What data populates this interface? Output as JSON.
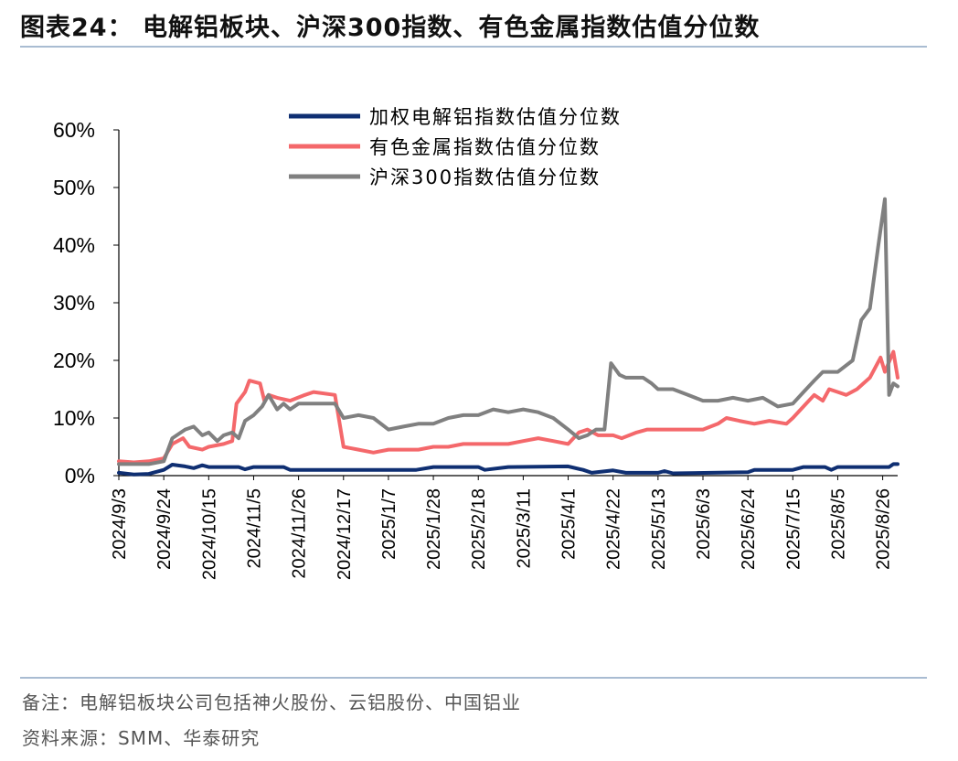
{
  "header": {
    "title": "图表24：  电解铝板块、沪深300指数、有色金属指数估值分位数"
  },
  "footer": {
    "note": "备注：电解铝板块公司包括神火股份、云铝股份、中国铝业",
    "source": "资料来源：SMM、华泰研究"
  },
  "chart_data": {
    "type": "line",
    "y_axis": {
      "min": 0,
      "max": 60,
      "step": 10,
      "format": "percent",
      "tick_labels": [
        "0%",
        "10%",
        "20%",
        "30%",
        "40%",
        "50%",
        "60%"
      ]
    },
    "x_axis": {
      "tick_labels": [
        "2024/9/3",
        "2024/9/24",
        "2024/10/15",
        "2024/11/5",
        "2024/11/26",
        "2024/12/17",
        "2025/1/7",
        "2025/1/28",
        "2025/2/18",
        "2025/3/11",
        "2025/4/1",
        "2025/4/22",
        "2025/5/13",
        "2025/6/3",
        "2025/6/24",
        "2025/7/15",
        "2025/8/5",
        "2025/8/26"
      ],
      "tick_dates": [
        "2024-09-03",
        "2024-09-24",
        "2024-10-15",
        "2024-11-05",
        "2024-11-26",
        "2024-12-17",
        "2025-01-07",
        "2025-01-28",
        "2025-02-18",
        "2025-03-11",
        "2025-04-01",
        "2025-04-22",
        "2025-05-13",
        "2025-06-03",
        "2025-06-24",
        "2025-07-15",
        "2025-08-05",
        "2025-08-26"
      ],
      "range": [
        "2024-09-03",
        "2025-09-02"
      ]
    },
    "grid": false,
    "legend": "top-center",
    "series": [
      {
        "name": "加权电解铝指数估值分位数",
        "color": "#0f2f72",
        "points": [
          [
            "2024-09-03",
            0.5
          ],
          [
            "2024-09-10",
            0.2
          ],
          [
            "2024-09-17",
            0.3
          ],
          [
            "2024-09-24",
            1.0
          ],
          [
            "2024-09-28",
            1.9
          ],
          [
            "2024-10-04",
            1.6
          ],
          [
            "2024-10-08",
            1.3
          ],
          [
            "2024-10-12",
            1.8
          ],
          [
            "2024-10-15",
            1.5
          ],
          [
            "2024-10-29",
            1.5
          ],
          [
            "2024-11-01",
            1.1
          ],
          [
            "2024-11-05",
            1.5
          ],
          [
            "2024-11-19",
            1.5
          ],
          [
            "2024-11-22",
            1.0
          ],
          [
            "2024-12-17",
            1.0
          ],
          [
            "2025-01-20",
            1.0
          ],
          [
            "2025-01-28",
            1.5
          ],
          [
            "2025-02-18",
            1.5
          ],
          [
            "2025-02-21",
            1.0
          ],
          [
            "2025-03-04",
            1.5
          ],
          [
            "2025-04-01",
            1.6
          ],
          [
            "2025-04-08",
            1.0
          ],
          [
            "2025-04-12",
            0.5
          ],
          [
            "2025-04-22",
            0.9
          ],
          [
            "2025-04-28",
            0.5
          ],
          [
            "2025-05-13",
            0.5
          ],
          [
            "2025-05-16",
            0.8
          ],
          [
            "2025-05-20",
            0.4
          ],
          [
            "2025-06-24",
            0.6
          ],
          [
            "2025-06-27",
            1.0
          ],
          [
            "2025-07-15",
            1.0
          ],
          [
            "2025-07-20",
            1.5
          ],
          [
            "2025-07-30",
            1.5
          ],
          [
            "2025-08-02",
            1.0
          ],
          [
            "2025-08-05",
            1.5
          ],
          [
            "2025-08-29",
            1.5
          ],
          [
            "2025-08-31",
            2.0
          ],
          [
            "2025-09-02",
            2.0
          ]
        ]
      },
      {
        "name": "有色金属指数估值分位数",
        "color": "#f4686b",
        "points": [
          [
            "2024-09-03",
            2.5
          ],
          [
            "2024-09-10",
            2.3
          ],
          [
            "2024-09-17",
            2.5
          ],
          [
            "2024-09-24",
            3.0
          ],
          [
            "2024-09-28",
            5.5
          ],
          [
            "2024-10-03",
            6.5
          ],
          [
            "2024-10-06",
            5.0
          ],
          [
            "2024-10-12",
            4.5
          ],
          [
            "2024-10-15",
            5.0
          ],
          [
            "2024-10-22",
            5.5
          ],
          [
            "2024-10-26",
            6.0
          ],
          [
            "2024-10-28",
            12.5
          ],
          [
            "2024-11-01",
            14.5
          ],
          [
            "2024-11-03",
            16.5
          ],
          [
            "2024-11-08",
            16.0
          ],
          [
            "2024-11-10",
            13.0
          ],
          [
            "2024-11-12",
            14.0
          ],
          [
            "2024-11-16",
            13.5
          ],
          [
            "2024-11-22",
            13.0
          ],
          [
            "2024-11-29",
            14.0
          ],
          [
            "2024-12-03",
            14.5
          ],
          [
            "2024-12-13",
            14.0
          ],
          [
            "2024-12-17",
            5.0
          ],
          [
            "2024-12-24",
            4.5
          ],
          [
            "2024-12-31",
            4.0
          ],
          [
            "2025-01-07",
            4.5
          ],
          [
            "2025-01-14",
            4.5
          ],
          [
            "2025-01-21",
            4.5
          ],
          [
            "2025-01-28",
            5.0
          ],
          [
            "2025-02-04",
            5.0
          ],
          [
            "2025-02-11",
            5.5
          ],
          [
            "2025-02-18",
            5.5
          ],
          [
            "2025-02-25",
            5.5
          ],
          [
            "2025-03-04",
            5.5
          ],
          [
            "2025-03-11",
            6.0
          ],
          [
            "2025-03-18",
            6.5
          ],
          [
            "2025-03-25",
            6.0
          ],
          [
            "2025-04-01",
            5.5
          ],
          [
            "2025-04-06",
            7.5
          ],
          [
            "2025-04-10",
            8.0
          ],
          [
            "2025-04-15",
            7.0
          ],
          [
            "2025-04-22",
            7.0
          ],
          [
            "2025-04-26",
            6.5
          ],
          [
            "2025-05-03",
            7.5
          ],
          [
            "2025-05-08",
            8.0
          ],
          [
            "2025-05-20",
            8.0
          ],
          [
            "2025-06-03",
            8.0
          ],
          [
            "2025-06-10",
            9.0
          ],
          [
            "2025-06-14",
            10.0
          ],
          [
            "2025-06-20",
            9.5
          ],
          [
            "2025-06-27",
            9.0
          ],
          [
            "2025-07-04",
            9.5
          ],
          [
            "2025-07-12",
            9.0
          ],
          [
            "2025-07-15",
            10.0
          ],
          [
            "2025-07-20",
            12.0
          ],
          [
            "2025-07-25",
            14.0
          ],
          [
            "2025-07-29",
            13.0
          ],
          [
            "2025-08-01",
            15.0
          ],
          [
            "2025-08-05",
            14.5
          ],
          [
            "2025-08-09",
            14.0
          ],
          [
            "2025-08-14",
            15.0
          ],
          [
            "2025-08-20",
            17.0
          ],
          [
            "2025-08-25",
            20.5
          ],
          [
            "2025-08-27",
            18.0
          ],
          [
            "2025-08-31",
            21.5
          ],
          [
            "2025-09-02",
            17.0
          ]
        ]
      },
      {
        "name": "沪深300指数估值分位数",
        "color": "#808080",
        "points": [
          [
            "2024-09-03",
            2.0
          ],
          [
            "2024-09-10",
            2.0
          ],
          [
            "2024-09-17",
            2.0
          ],
          [
            "2024-09-24",
            2.5
          ],
          [
            "2024-09-28",
            6.5
          ],
          [
            "2024-10-04",
            8.0
          ],
          [
            "2024-10-08",
            8.5
          ],
          [
            "2024-10-12",
            7.0
          ],
          [
            "2024-10-15",
            7.5
          ],
          [
            "2024-10-19",
            6.0
          ],
          [
            "2024-10-22",
            7.0
          ],
          [
            "2024-10-26",
            7.5
          ],
          [
            "2024-10-29",
            6.5
          ],
          [
            "2024-11-01",
            9.5
          ],
          [
            "2024-11-05",
            10.5
          ],
          [
            "2024-11-09",
            12.0
          ],
          [
            "2024-11-12",
            14.0
          ],
          [
            "2024-11-16",
            11.5
          ],
          [
            "2024-11-19",
            12.5
          ],
          [
            "2024-11-22",
            11.5
          ],
          [
            "2024-11-26",
            12.5
          ],
          [
            "2024-12-03",
            12.5
          ],
          [
            "2024-12-13",
            12.5
          ],
          [
            "2024-12-17",
            10.0
          ],
          [
            "2024-12-24",
            10.5
          ],
          [
            "2024-12-31",
            10.0
          ],
          [
            "2025-01-07",
            8.0
          ],
          [
            "2025-01-14",
            8.5
          ],
          [
            "2025-01-21",
            9.0
          ],
          [
            "2025-01-28",
            9.0
          ],
          [
            "2025-02-04",
            10.0
          ],
          [
            "2025-02-11",
            10.5
          ],
          [
            "2025-02-18",
            10.5
          ],
          [
            "2025-02-25",
            11.5
          ],
          [
            "2025-03-04",
            11.0
          ],
          [
            "2025-03-11",
            11.5
          ],
          [
            "2025-03-18",
            11.0
          ],
          [
            "2025-03-25",
            10.0
          ],
          [
            "2025-04-01",
            8.0
          ],
          [
            "2025-04-06",
            6.5
          ],
          [
            "2025-04-10",
            7.0
          ],
          [
            "2025-04-14",
            8.0
          ],
          [
            "2025-04-18",
            8.0
          ],
          [
            "2025-04-21",
            19.5
          ],
          [
            "2025-04-25",
            17.5
          ],
          [
            "2025-04-28",
            17.0
          ],
          [
            "2025-05-06",
            17.0
          ],
          [
            "2025-05-10",
            16.0
          ],
          [
            "2025-05-13",
            15.0
          ],
          [
            "2025-05-20",
            15.0
          ],
          [
            "2025-05-27",
            14.0
          ],
          [
            "2025-06-03",
            13.0
          ],
          [
            "2025-06-10",
            13.0
          ],
          [
            "2025-06-17",
            13.5
          ],
          [
            "2025-06-24",
            13.0
          ],
          [
            "2025-07-01",
            13.5
          ],
          [
            "2025-07-08",
            12.0
          ],
          [
            "2025-07-15",
            12.5
          ],
          [
            "2025-07-20",
            14.5
          ],
          [
            "2025-07-25",
            16.5
          ],
          [
            "2025-07-29",
            18.0
          ],
          [
            "2025-08-05",
            18.0
          ],
          [
            "2025-08-12",
            20.0
          ],
          [
            "2025-08-16",
            27.0
          ],
          [
            "2025-08-20",
            29.0
          ],
          [
            "2025-08-24",
            40.0
          ],
          [
            "2025-08-27",
            48.0
          ],
          [
            "2025-08-29",
            14.0
          ],
          [
            "2025-08-31",
            16.0
          ],
          [
            "2025-09-02",
            15.5
          ]
        ]
      }
    ]
  }
}
